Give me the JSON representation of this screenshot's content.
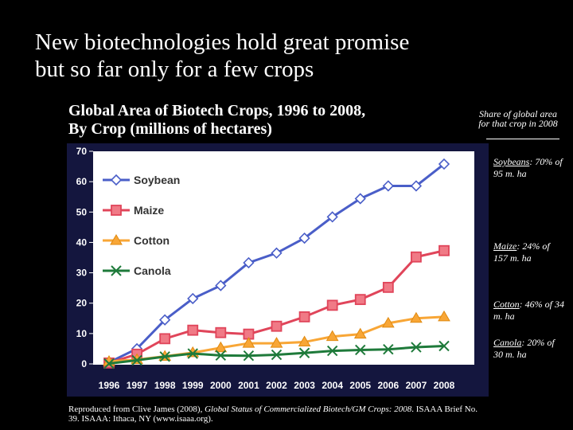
{
  "slide": {
    "title_line1": "New biotechnologies hold great promise",
    "title_line2": "but so far only for a few crops"
  },
  "chart_heading": {
    "line1": "Global Area of Biotech Crops, 1996 to 2008,",
    "line2": "By Crop (millions of hectares)"
  },
  "side_panel": {
    "heading": "Share of global area for that crop in 2008",
    "notes": [
      {
        "name": "Soybeans",
        "text": "70% of 95 m. ha"
      },
      {
        "name": "Maize",
        "text": "24% of 157 m. ha"
      },
      {
        "name": "Cotton",
        "text": "46% of 34 m. ha"
      },
      {
        "name": "Canola",
        "text": "20% of 30 m. ha"
      }
    ]
  },
  "credit": {
    "part1": "Reproduced from Clive James (2008), ",
    "title": "Global Status of Commercialized Biotech/GM Crops: 2008",
    "part2": ". ISAAA Brief No. 39. ISAAA: Ithaca, NY (www.isaaa.org)."
  },
  "colors": {
    "frame": "#14163e",
    "plot_bg": "#ffffff",
    "soybean": "#4a5ec8",
    "maize": "#e0455a",
    "cotton": "#f8a636",
    "canola": "#1e7a3a"
  },
  "chart_data": {
    "type": "line",
    "categories": [
      "1996",
      "1997",
      "1998",
      "1999",
      "2000",
      "2001",
      "2002",
      "2003",
      "2004",
      "2005",
      "2006",
      "2007",
      "2008"
    ],
    "ylim": [
      0,
      70
    ],
    "yticks": [
      "0",
      "10",
      "20",
      "30",
      "40",
      "50",
      "60",
      "70"
    ],
    "grid": false,
    "legend_position": "top-left",
    "series": [
      {
        "name": "Soybean",
        "marker": "diamond",
        "values": [
          0.5,
          5,
          14.5,
          21.5,
          25.8,
          33.3,
          36.5,
          41.4,
          48.4,
          54.4,
          58.6,
          58.6,
          65.8
        ]
      },
      {
        "name": "Maize",
        "marker": "square",
        "values": [
          0.3,
          3.2,
          8.3,
          11.1,
          10.3,
          9.8,
          12.4,
          15.5,
          19.3,
          21.2,
          25.2,
          35.2,
          37.3
        ]
      },
      {
        "name": "Cotton",
        "marker": "triangle",
        "values": [
          0.8,
          1.4,
          2.5,
          3.7,
          5.3,
          6.8,
          6.8,
          7.2,
          9,
          9.8,
          13.4,
          15,
          15.5
        ]
      },
      {
        "name": "Canola",
        "marker": "x",
        "values": [
          0.1,
          1.2,
          2.4,
          3.4,
          2.8,
          2.7,
          3,
          3.6,
          4.3,
          4.6,
          4.8,
          5.5,
          5.9
        ]
      }
    ]
  }
}
